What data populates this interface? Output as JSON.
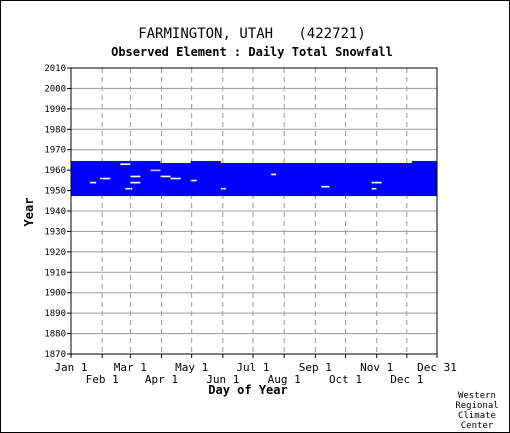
{
  "chart_data": {
    "type": "heatmap",
    "title": "FARMINGTON, UTAH   (422721)",
    "subtitle": "Observed Element : Daily Total Snowfall",
    "xlabel": "Day of Year",
    "ylabel": "Year",
    "xlim": [
      1,
      365
    ],
    "ylim": [
      1870,
      2010
    ],
    "grid": true,
    "y_ticks": [
      1870,
      1880,
      1890,
      1900,
      1910,
      1920,
      1930,
      1940,
      1950,
      1960,
      1970,
      1980,
      1990,
      2000,
      2010
    ],
    "x_ticks_top_row": [
      {
        "label": "Jan 1",
        "day": 1
      },
      {
        "label": "Mar 1",
        "day": 60
      },
      {
        "label": "May 1",
        "day": 121
      },
      {
        "label": "Jul 1",
        "day": 182
      },
      {
        "label": "Sep 1",
        "day": 244
      },
      {
        "label": "Nov 1",
        "day": 305
      },
      {
        "label": "Dec 31",
        "day": 365
      }
    ],
    "x_ticks_bottom_row": [
      {
        "label": "Feb 1",
        "day": 32
      },
      {
        "label": "Apr 1",
        "day": 91
      },
      {
        "label": "Jun 1",
        "day": 152
      },
      {
        "label": "Aug 1",
        "day": 213
      },
      {
        "label": "Oct 1",
        "day": 274
      },
      {
        "label": "Dec 1",
        "day": 335
      }
    ],
    "data_color": "#0000ff",
    "coverage": [
      {
        "year": 1948,
        "ranges": [
          [
            1,
            365
          ]
        ]
      },
      {
        "year": 1949,
        "ranges": [
          [
            1,
            365
          ]
        ]
      },
      {
        "year": 1950,
        "ranges": [
          [
            1,
            365
          ]
        ]
      },
      {
        "year": 1951,
        "ranges": [
          [
            1,
            55
          ],
          [
            62,
            150
          ],
          [
            155,
            300
          ],
          [
            305,
            365
          ]
        ]
      },
      {
        "year": 1952,
        "ranges": [
          [
            1,
            250
          ],
          [
            258,
            365
          ]
        ]
      },
      {
        "year": 1953,
        "ranges": [
          [
            1,
            365
          ]
        ]
      },
      {
        "year": 1954,
        "ranges": [
          [
            1,
            20
          ],
          [
            26,
            60
          ],
          [
            70,
            300
          ],
          [
            310,
            365
          ]
        ]
      },
      {
        "year": 1955,
        "ranges": [
          [
            1,
            120
          ],
          [
            126,
            365
          ]
        ]
      },
      {
        "year": 1956,
        "ranges": [
          [
            1,
            30
          ],
          [
            40,
            100
          ],
          [
            110,
            365
          ]
        ]
      },
      {
        "year": 1957,
        "ranges": [
          [
            1,
            60
          ],
          [
            70,
            90
          ],
          [
            100,
            365
          ]
        ]
      },
      {
        "year": 1958,
        "ranges": [
          [
            1,
            200
          ],
          [
            205,
            365
          ]
        ]
      },
      {
        "year": 1959,
        "ranges": [
          [
            1,
            365
          ]
        ]
      },
      {
        "year": 1960,
        "ranges": [
          [
            1,
            80
          ],
          [
            90,
            365
          ]
        ]
      },
      {
        "year": 1961,
        "ranges": [
          [
            1,
            365
          ]
        ]
      },
      {
        "year": 1962,
        "ranges": [
          [
            1,
            365
          ]
        ]
      },
      {
        "year": 1963,
        "ranges": [
          [
            1,
            50
          ],
          [
            60,
            365
          ]
        ]
      },
      {
        "year": 1964,
        "ranges": [
          [
            1,
            90
          ],
          [
            120,
            150
          ],
          [
            340,
            365
          ]
        ]
      }
    ]
  },
  "footer": {
    "credit_line1": "Western",
    "credit_line2": "Regional",
    "credit_line3": "Climate",
    "credit_line4": "Center"
  }
}
